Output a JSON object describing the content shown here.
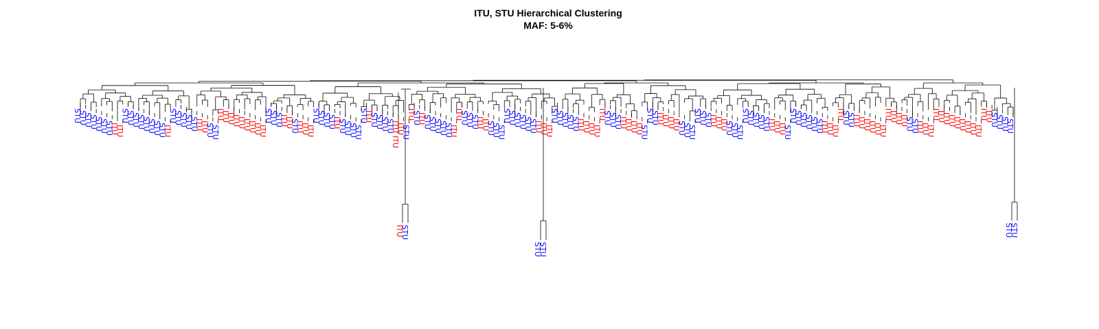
{
  "chart_data": {
    "type": "dendrogram",
    "title": "ITU, STU Hierarchical Clustering",
    "subtitle": "MAF: 5-6%",
    "label_colors": {
      "ITU": "#ff0000",
      "STU": "#0000ff"
    },
    "leaves": [
      "STU",
      "STU",
      "STU",
      "STU",
      "STU",
      "STU",
      "STU",
      "ITU",
      "ITU",
      "STU",
      "STU",
      "STU",
      "STU",
      "STU",
      "STU",
      "STU",
      "STU",
      "ITU",
      "STU",
      "STU",
      "STU",
      "STU",
      "STU",
      "ITU",
      "ITU",
      "STU",
      "STU",
      "ITU",
      "ITU",
      "ITU",
      "ITU",
      "ITU",
      "ITU",
      "ITU",
      "ITU",
      "ITU",
      "STU",
      "STU",
      "STU",
      "ITU",
      "ITU",
      "STU",
      "ITU",
      "ITU",
      "ITU",
      "STU",
      "STU",
      "STU",
      "STU",
      "ITU",
      "STU",
      "STU",
      "STU",
      "STU",
      "STU",
      "ITU",
      "STU",
      "STU",
      "STU",
      "STU",
      "ITU",
      "ITU",
      "STU",
      "ITU",
      "STU",
      "ITU",
      "STU",
      "STU",
      "STU",
      "STU",
      "STU",
      "ITU",
      "ITU",
      "STU",
      "STU",
      "STU",
      "ITU",
      "ITU",
      "STU",
      "STU",
      "STU",
      "STU",
      "STU",
      "STU",
      "STU",
      "STU",
      "STU",
      "ITU",
      "ITU",
      "ITU",
      "STU",
      "STU",
      "STU",
      "STU",
      "STU",
      "ITU",
      "ITU",
      "ITU",
      "ITU",
      "ITU",
      "STU",
      "STU",
      "STU",
      "ITU",
      "ITU",
      "ITU",
      "ITU",
      "STU",
      "STU",
      "STU",
      "ITU",
      "ITU",
      "ITU",
      "ITU",
      "STU",
      "STU",
      "STU",
      "STU",
      "STU",
      "STU",
      "ITU",
      "ITU",
      "ITU",
      "STU",
      "STU",
      "STU",
      "STU",
      "STU",
      "STU",
      "STU",
      "STU",
      "ITU",
      "ITU",
      "ITU",
      "STU",
      "STU",
      "STU",
      "STU",
      "STU",
      "STU",
      "STU",
      "ITU",
      "ITU",
      "ITU",
      "ITU",
      "STU",
      "STU",
      "ITU",
      "ITU",
      "ITU",
      "ITU",
      "ITU",
      "ITU",
      "ITU",
      "ITU",
      "ITU",
      "ITU",
      "STU",
      "STU",
      "ITU",
      "ITU",
      "ITU",
      "ITU",
      "ITU",
      "ITU",
      "ITU",
      "ITU",
      "ITU",
      "ITU",
      "ITU",
      "ITU",
      "ITU",
      "ITU",
      "STU",
      "STU",
      "STU",
      "STU"
    ],
    "outliers": [
      {
        "labels": [
          "ITU"
        ]
      },
      {
        "labels": [
          "ITU",
          "STU"
        ]
      },
      {
        "labels": [
          "STU",
          "STU"
        ]
      },
      {
        "labels": [
          "STU",
          "STU"
        ]
      }
    ],
    "axes": "none",
    "grid": false,
    "legend": "none"
  }
}
